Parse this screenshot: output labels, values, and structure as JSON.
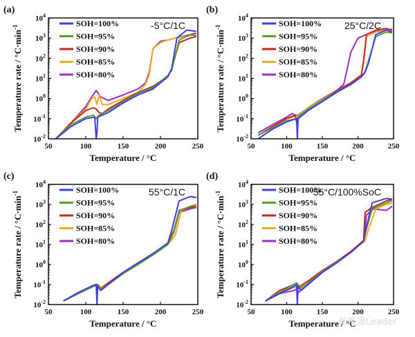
{
  "colors": {
    "SOH=100%": "#3a3df0",
    "SOH=95%": "#5aa02c",
    "SOH=90%": "#cc2222",
    "SOH=85%": "#e8b020",
    "SOH=80%": "#9a2fc6"
  },
  "watermark": "新能源Leader",
  "chart_data": [
    {
      "type": "line",
      "panel": "(a)",
      "condition": "-5°C/1C",
      "xlabel": "Temperature / °C",
      "ylabel": "Temperature rate / °C·min⁻¹",
      "xlim": [
        50,
        250
      ],
      "ylim": [
        0.01,
        10000
      ],
      "yscale": "log",
      "xticks": [
        50,
        100,
        150,
        200,
        250
      ],
      "yticks": [
        "10⁻²",
        "10⁻¹",
        "10⁰",
        "10¹",
        "10²",
        "10³",
        "10⁴"
      ],
      "legend": "top-left",
      "series": [
        {
          "name": "SOH=100%",
          "x": [
            60,
            80,
            100,
            112,
            114,
            115,
            116,
            130,
            150,
            170,
            190,
            200,
            210,
            215,
            222,
            235,
            248
          ],
          "y": [
            0.01,
            0.04,
            0.1,
            0.12,
            0.01,
            0.02,
            0.12,
            0.2,
            0.6,
            1.5,
            3,
            6,
            12,
            30,
            1000,
            2500,
            2200
          ]
        },
        {
          "name": "SOH=95%",
          "x": [
            60,
            80,
            100,
            110,
            114,
            118,
            130,
            150,
            170,
            190,
            200,
            210,
            215,
            225,
            240,
            248
          ],
          "y": [
            0.01,
            0.05,
            0.12,
            0.15,
            0.1,
            0.15,
            0.25,
            0.7,
            1.8,
            3.5,
            7,
            14,
            25,
            800,
            1500,
            1300
          ]
        },
        {
          "name": "SOH=90%",
          "x": [
            60,
            80,
            100,
            110,
            114,
            118,
            122,
            130,
            150,
            170,
            190,
            210,
            215,
            225,
            240,
            248
          ],
          "y": [
            0.01,
            0.06,
            0.25,
            0.35,
            0.3,
            0.2,
            0.18,
            0.3,
            0.8,
            2,
            4,
            13,
            30,
            600,
            1000,
            1200
          ]
        },
        {
          "name": "SOH=85%",
          "x": [
            60,
            80,
            100,
            108,
            112,
            115,
            118,
            122,
            130,
            150,
            170,
            180,
            185,
            190,
            200,
            210,
            220,
            240,
            248
          ],
          "y": [
            0.01,
            0.06,
            0.3,
            1,
            1.2,
            0.5,
            1.5,
            0.5,
            0.5,
            1,
            2,
            5,
            15,
            300,
            600,
            800,
            1000,
            1300,
            1500
          ]
        },
        {
          "name": "SOH=80%",
          "x": [
            60,
            80,
            100,
            108,
            112,
            114,
            116,
            120,
            130,
            150,
            170,
            180,
            185,
            190,
            200,
            210,
            220,
            240,
            248
          ],
          "y": [
            0.01,
            0.06,
            0.4,
            1.2,
            2,
            2.5,
            2,
            1.2,
            0.8,
            1.5,
            3,
            6,
            20,
            300,
            700,
            800,
            1000,
            1500,
            1800
          ]
        }
      ]
    },
    {
      "type": "line",
      "panel": "(b)",
      "condition": "25°C/2C",
      "xlabel": "Temperature / °C",
      "ylabel": "Temperature rate / °C·min⁻¹",
      "xlim": [
        50,
        250
      ],
      "ylim": [
        0.01,
        10000
      ],
      "yscale": "log",
      "xticks": [
        50,
        100,
        150,
        200,
        250
      ],
      "yticks": [
        "10⁻²",
        "10⁻¹",
        "10⁰",
        "10¹",
        "10²",
        "10³",
        "10⁴"
      ],
      "legend": "top-left",
      "series": [
        {
          "name": "SOH=100%",
          "x": [
            60,
            80,
            100,
            114,
            115,
            116,
            130,
            150,
            170,
            190,
            205,
            210,
            215,
            225,
            240,
            248
          ],
          "y": [
            0.01,
            0.03,
            0.07,
            0.1,
            0.01,
            0.1,
            0.25,
            0.7,
            2,
            5,
            12,
            20,
            60,
            1500,
            2500,
            2000
          ]
        },
        {
          "name": "SOH=95%",
          "x": [
            60,
            80,
            100,
            114,
            116,
            130,
            150,
            170,
            190,
            205,
            210,
            215,
            225,
            240,
            248
          ],
          "y": [
            0.015,
            0.035,
            0.08,
            0.1,
            0.12,
            0.3,
            0.8,
            2.2,
            5,
            12,
            22,
            80,
            1200,
            2000,
            1800
          ]
        },
        {
          "name": "SOH=90%",
          "x": [
            60,
            80,
            100,
            112,
            114,
            116,
            130,
            150,
            170,
            190,
            205,
            208,
            212,
            225,
            240,
            248
          ],
          "y": [
            0.015,
            0.04,
            0.1,
            0.15,
            0.06,
            0.12,
            0.3,
            0.8,
            2.5,
            6,
            15,
            80,
            1500,
            2500,
            3000,
            2500
          ]
        },
        {
          "name": "SOH=85%",
          "x": [
            60,
            80,
            100,
            112,
            116,
            130,
            150,
            170,
            190,
            205,
            208,
            212,
            225,
            240,
            248
          ],
          "y": [
            0.015,
            0.04,
            0.1,
            0.13,
            0.14,
            0.35,
            0.9,
            2.5,
            6,
            15,
            60,
            1200,
            2000,
            2500,
            2200
          ]
        },
        {
          "name": "SOH=80%",
          "x": [
            60,
            80,
            100,
            108,
            112,
            116,
            130,
            150,
            170,
            180,
            185,
            190,
            200,
            220,
            240,
            248
          ],
          "y": [
            0.02,
            0.05,
            0.12,
            0.18,
            0.15,
            0.15,
            0.35,
            1,
            2.5,
            5,
            30,
            200,
            1000,
            2000,
            2500,
            2800
          ]
        }
      ]
    },
    {
      "type": "line",
      "panel": "(c)",
      "condition": "55°C/1C",
      "xlabel": "Temperature / °C",
      "ylabel": "Temperature rate / °C·min⁻¹",
      "xlim": [
        50,
        250
      ],
      "ylim": [
        0.01,
        10000
      ],
      "yscale": "log",
      "xticks": [
        50,
        100,
        150,
        200,
        250
      ],
      "yticks": [
        "10⁻²",
        "10⁻¹",
        "10⁰",
        "10¹",
        "10²",
        "10³",
        "10⁴"
      ],
      "legend": "top-left",
      "series": [
        {
          "name": "SOH=100%",
          "x": [
            70,
            90,
            110,
            114,
            115,
            116,
            120,
            130,
            150,
            170,
            190,
            210,
            215,
            225,
            240,
            248
          ],
          "y": [
            0.015,
            0.04,
            0.09,
            0.1,
            0.01,
            0.08,
            0.05,
            0.1,
            0.4,
            1.2,
            3.5,
            12,
            50,
            1500,
            2500,
            2200
          ]
        },
        {
          "name": "SOH=95%",
          "x": [
            70,
            90,
            110,
            116,
            120,
            130,
            150,
            170,
            190,
            210,
            218,
            225,
            240,
            248
          ],
          "y": [
            0.015,
            0.035,
            0.08,
            0.09,
            0.06,
            0.1,
            0.35,
            1,
            3,
            10,
            40,
            500,
            800,
            1000
          ]
        },
        {
          "name": "SOH=90%",
          "x": [
            70,
            90,
            110,
            116,
            120,
            130,
            150,
            170,
            190,
            210,
            218,
            225,
            240,
            248
          ],
          "y": [
            0.015,
            0.035,
            0.09,
            0.1,
            0.06,
            0.12,
            0.4,
            1.2,
            3.5,
            11,
            50,
            500,
            700,
            800
          ]
        },
        {
          "name": "SOH=85%",
          "x": [
            70,
            90,
            110,
            116,
            120,
            130,
            150,
            170,
            190,
            210,
            220,
            228,
            240,
            248
          ],
          "y": [
            0.015,
            0.035,
            0.08,
            0.1,
            0.07,
            0.12,
            0.4,
            1.1,
            3.2,
            10,
            30,
            500,
            700,
            800
          ]
        },
        {
          "name": "SOH=80%",
          "x": [
            70,
            90,
            110,
            116,
            120,
            130,
            150,
            170,
            190,
            210,
            218,
            225,
            240,
            248
          ],
          "y": [
            0.015,
            0.035,
            0.08,
            0.09,
            0.06,
            0.1,
            0.35,
            1,
            3,
            10,
            40,
            400,
            600,
            700
          ]
        }
      ]
    },
    {
      "type": "line",
      "panel": "(d)",
      "condition": "55°C/100%SoC",
      "xlabel": "Temperature / °C",
      "ylabel": "Temperature rate / °C·min⁻¹",
      "xlim": [
        50,
        250
      ],
      "ylim": [
        0.01,
        10000
      ],
      "yscale": "log",
      "xticks": [
        50,
        100,
        150,
        200,
        250
      ],
      "yticks": [
        "10⁻²",
        "10⁻¹",
        "10⁰",
        "10¹",
        "10²",
        "10³",
        "10⁴"
      ],
      "legend": "top-left",
      "series": [
        {
          "name": "SOH=100%",
          "x": [
            70,
            90,
            110,
            114,
            115,
            116,
            120,
            130,
            150,
            170,
            190,
            208,
            212,
            220,
            240,
            248
          ],
          "y": [
            0.015,
            0.035,
            0.08,
            0.1,
            0.01,
            0.08,
            0.05,
            0.1,
            0.4,
            1.2,
            4,
            15,
            80,
            1200,
            2000,
            1800
          ]
        },
        {
          "name": "SOH=95%",
          "x": [
            70,
            90,
            110,
            114,
            116,
            120,
            130,
            150,
            170,
            190,
            208,
            212,
            220,
            240,
            248
          ],
          "y": [
            0.015,
            0.04,
            0.1,
            0.12,
            0.1,
            0.07,
            0.12,
            0.45,
            1.3,
            4,
            15,
            60,
            600,
            1200,
            1500
          ]
        },
        {
          "name": "SOH=90%",
          "x": [
            70,
            90,
            110,
            114,
            118,
            130,
            150,
            170,
            190,
            208,
            210,
            220,
            240,
            248
          ],
          "y": [
            0.015,
            0.05,
            0.1,
            0.12,
            0.08,
            0.15,
            0.5,
            1.4,
            4.5,
            16,
            400,
            700,
            1500,
            1800
          ]
        },
        {
          "name": "SOH=85%",
          "x": [
            70,
            90,
            110,
            116,
            120,
            130,
            150,
            170,
            190,
            210,
            215,
            225,
            240,
            248
          ],
          "y": [
            0.015,
            0.035,
            0.07,
            0.08,
            0.06,
            0.12,
            0.45,
            1.3,
            4,
            15,
            60,
            600,
            1000,
            1200
          ]
        },
        {
          "name": "SOH=80%",
          "x": [
            70,
            90,
            110,
            114,
            116,
            120,
            130,
            150,
            170,
            190,
            208,
            212,
            222,
            240,
            248
          ],
          "y": [
            0.015,
            0.035,
            0.05,
            0.06,
            0.04,
            0.05,
            0.1,
            0.4,
            1.2,
            4,
            14,
            300,
            600,
            500,
            800
          ]
        }
      ]
    }
  ]
}
